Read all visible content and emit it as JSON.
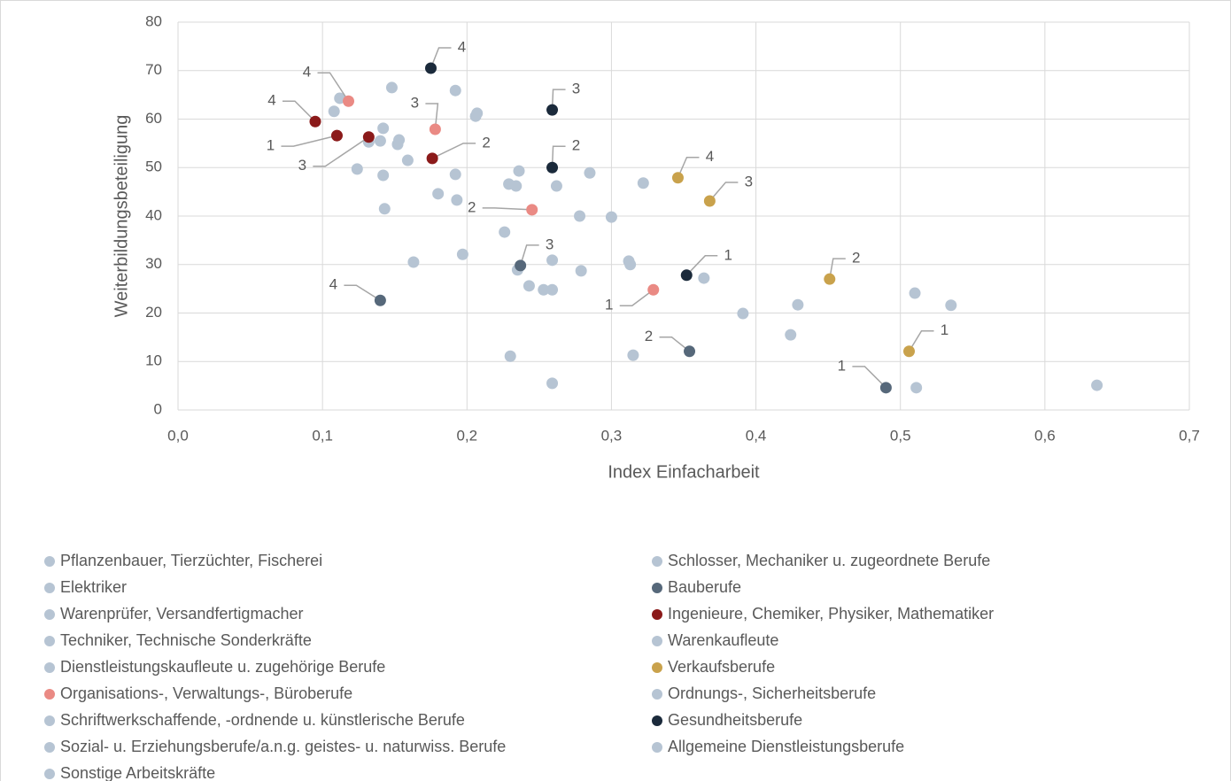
{
  "chart_data": {
    "type": "scatter",
    "xlabel": "Index Einfacharbeit",
    "ylabel": "Weiterbildungsbeteiligung",
    "xlim": [
      0,
      0.7
    ],
    "ylim": [
      0,
      80
    ],
    "xticks": [
      {
        "value": 0,
        "label": "0,0"
      },
      {
        "value": 0.1,
        "label": "0,1"
      },
      {
        "value": 0.2,
        "label": "0,2"
      },
      {
        "value": 0.3,
        "label": "0,3"
      },
      {
        "value": 0.4,
        "label": "0,4"
      },
      {
        "value": 0.5,
        "label": "0,5"
      },
      {
        "value": 0.6,
        "label": "0,6"
      },
      {
        "value": 0.7,
        "label": "0,7"
      }
    ],
    "yticks": [
      0,
      10,
      20,
      30,
      40,
      50,
      60,
      70,
      80
    ],
    "grid": true,
    "legend": "bottom",
    "series": [
      {
        "name": "Pflanzenbauer, Tierzüchter, Fischerei",
        "color": "#b6c4d3",
        "x": [
          0.112,
          0.108,
          0.148,
          0.192
        ],
        "values": [
          64.3,
          61.6,
          66.5,
          65.9
        ]
      },
      {
        "name": "Schlosser, Mechaniker u. zugeordnete Berufe",
        "color": "#b6c4d3",
        "x": [
          0.207,
          0.206,
          0.142,
          0.153
        ],
        "values": [
          61.2,
          60.6,
          58.1,
          55.7
        ]
      },
      {
        "name": "Elektriker",
        "color": "#b6c4d3",
        "x": [
          0.152,
          0.14,
          0.132,
          0.159
        ],
        "values": [
          54.8,
          55.5,
          55.3,
          51.5
        ]
      },
      {
        "name": "Bauberufe",
        "color": "#56687a",
        "x": [
          0.49,
          0.354,
          0.237,
          0.14
        ],
        "values": [
          4.6,
          12.1,
          29.8,
          22.6
        ],
        "point_labels": [
          "1",
          "2",
          "3",
          "4"
        ]
      },
      {
        "name": "Warenprüfer, Versandfertigmacher",
        "color": "#b6c4d3",
        "x": [
          0.124,
          0.142,
          0.192,
          0.236
        ],
        "values": [
          49.7,
          48.4,
          48.6,
          49.3
        ]
      },
      {
        "name": "Ingenieure, Chemiker, Physiker, Mathematiker",
        "color": "#8b1a1a",
        "x": [
          0.11,
          0.176,
          0.132,
          0.095
        ],
        "values": [
          56.6,
          51.9,
          56.3,
          59.5
        ],
        "point_labels": [
          "1",
          "2",
          "3",
          "4"
        ]
      },
      {
        "name": "Techniker, Technische Sonderkräfte",
        "color": "#b6c4d3",
        "x": [
          0.285,
          0.322,
          0.229,
          0.234
        ],
        "values": [
          48.9,
          46.8,
          46.6,
          46.2
        ]
      },
      {
        "name": "Warenkaufleute",
        "color": "#b6c4d3",
        "x": [
          0.262,
          0.18,
          0.193,
          0.143
        ],
        "values": [
          46.2,
          44.6,
          43.3,
          41.5
        ]
      },
      {
        "name": "Dienstleistungskaufleute u. zugehörige Berufe",
        "color": "#b6c4d3",
        "x": [
          0.278,
          0.3,
          0.226,
          0.163
        ],
        "values": [
          40.0,
          39.8,
          36.7,
          30.5
        ]
      },
      {
        "name": "Verkaufsberufe",
        "color": "#c9a24c",
        "x": [
          0.506,
          0.451,
          0.368,
          0.346
        ],
        "values": [
          12.1,
          27.0,
          43.1,
          47.9
        ],
        "point_labels": [
          "1",
          "2",
          "3",
          "4"
        ]
      },
      {
        "name": "Organisations-, Verwaltungs-, Büroberufe",
        "color": "#ea8a84",
        "x": [
          0.329,
          0.245,
          0.178,
          0.118
        ],
        "values": [
          24.8,
          41.3,
          57.9,
          63.7
        ],
        "point_labels": [
          "1",
          "2",
          "3",
          "4"
        ]
      },
      {
        "name": "Ordnungs-, Sicherheitsberufe",
        "color": "#b6c4d3",
        "x": [
          0.197,
          0.259,
          0.312,
          0.313
        ],
        "values": [
          32.1,
          30.9,
          30.7,
          30.0
        ]
      },
      {
        "name": "Schriftwerkschaffende, -ordnende u. künstlerische Berufe",
        "color": "#b6c4d3",
        "x": [
          0.235,
          0.279,
          0.243,
          0.253
        ],
        "values": [
          28.9,
          28.7,
          25.6,
          24.8
        ]
      },
      {
        "name": "Gesundheitsberufe",
        "color": "#1b2a3b",
        "x": [
          0.352,
          0.259,
          0.259,
          0.175
        ],
        "values": [
          27.8,
          50.0,
          61.9,
          70.5
        ],
        "point_labels": [
          "1",
          "2",
          "3",
          "4"
        ]
      },
      {
        "name": "Sozial- u. Erziehungsberufe/a.n.g. geistes- u. naturwiss. Berufe",
        "color": "#b6c4d3",
        "x": [
          0.259,
          0.364,
          0.51,
          0.535
        ],
        "values": [
          24.8,
          27.2,
          24.1,
          21.6
        ]
      },
      {
        "name": "Allgemeine Dienstleistungsberufe",
        "color": "#b6c4d3",
        "x": [
          0.429,
          0.391,
          0.424,
          0.23
        ],
        "values": [
          21.7,
          19.9,
          15.5,
          11.1
        ]
      },
      {
        "name": "Sonstige Arbeitskräfte",
        "color": "#b6c4d3",
        "x": [
          0.315,
          0.259,
          0.511,
          0.636
        ],
        "values": [
          11.3,
          5.5,
          4.6,
          5.1
        ]
      }
    ]
  }
}
